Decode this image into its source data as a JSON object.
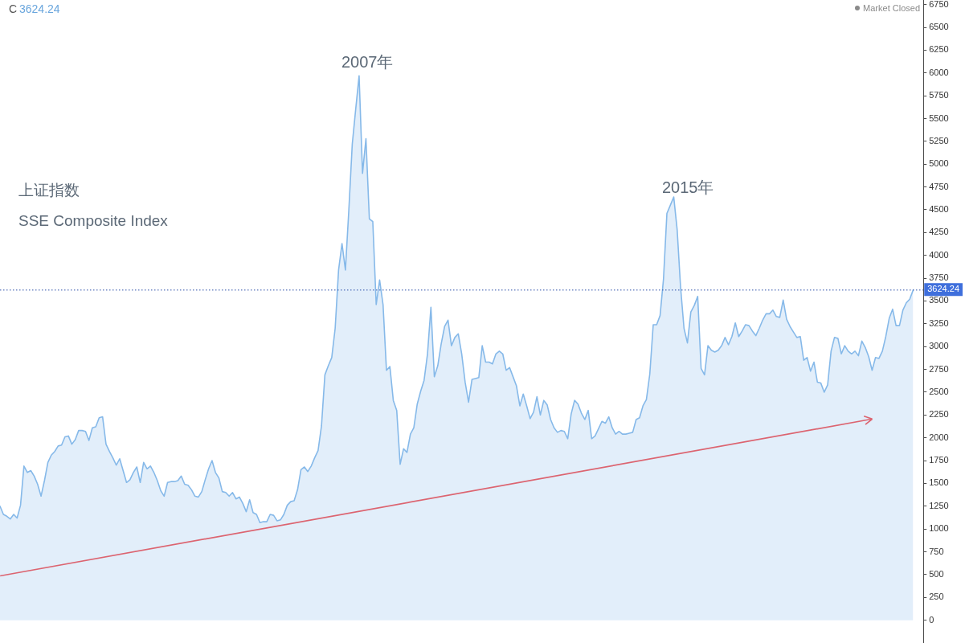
{
  "chart_data": {
    "type": "area",
    "title": "上证指数",
    "subtitle": "SSE Composite Index",
    "annotations": [
      "C",
      "3624.24",
      "Market Closed",
      "2007年",
      "2015年"
    ],
    "categories": [
      null,
      null,
      null,
      null,
      null,
      null,
      null,
      null,
      null,
      null,
      null,
      null,
      null,
      null,
      null,
      null,
      null,
      null,
      null,
      null,
      null,
      null,
      null,
      null,
      null,
      null,
      null,
      null,
      null,
      null,
      null,
      null,
      null,
      null,
      null,
      null,
      null,
      null,
      null,
      null,
      null,
      null,
      null,
      null,
      null,
      null,
      null,
      null,
      null,
      null,
      null,
      null,
      null,
      null,
      null,
      null,
      null,
      null,
      null,
      null,
      null,
      null,
      null,
      null,
      null,
      null,
      null,
      null,
      null,
      null,
      null,
      null,
      null,
      null,
      null,
      null,
      null,
      null,
      null,
      null,
      null,
      null,
      null,
      null,
      null,
      null,
      null,
      null,
      null,
      null,
      null,
      null,
      null,
      null,
      null,
      null,
      null,
      null,
      null,
      null,
      null,
      null,
      null,
      null,
      null,
      null,
      null,
      null,
      null,
      null,
      null,
      null,
      null,
      null,
      null,
      null,
      null,
      null,
      null,
      null,
      null,
      null,
      null,
      null,
      null,
      null,
      null,
      null,
      null,
      null,
      null,
      null,
      null,
      null,
      null,
      null,
      null,
      null,
      null,
      null,
      null,
      null,
      null,
      null,
      null,
      null,
      null,
      null,
      null,
      null,
      null,
      null,
      null,
      null,
      null,
      null,
      null,
      null,
      null,
      null,
      null,
      null,
      null,
      null,
      null,
      null,
      null,
      null,
      null,
      null,
      null,
      null,
      null,
      null,
      null,
      null,
      null,
      null,
      null,
      null,
      null,
      null,
      null,
      null,
      null,
      null,
      null,
      null,
      null,
      null,
      null,
      null,
      null,
      null,
      null,
      null,
      null,
      null,
      null,
      null,
      null,
      null,
      null,
      null,
      null,
      null,
      null,
      null,
      null,
      null,
      null,
      null,
      null,
      null,
      null,
      null,
      null,
      null,
      null,
      null,
      null,
      null,
      null,
      null,
      null,
      null,
      null,
      null,
      null,
      null,
      null,
      null,
      null,
      null,
      null,
      null,
      null,
      null,
      null,
      null,
      null,
      null,
      null,
      null,
      null,
      null,
      null,
      null,
      null,
      null,
      null,
      null,
      null,
      null,
      null,
      null,
      null,
      null,
      null,
      null,
      null,
      null,
      null,
      null,
      null,
      null,
      null,
      null
    ],
    "series": [
      {
        "color": "#86b9e9",
        "values": [
          1250,
          1160,
          1140,
          1110,
          1160,
          1120,
          1260,
          1690,
          1620,
          1640,
          1580,
          1490,
          1360,
          1530,
          1730,
          1810,
          1850,
          1910,
          1920,
          2010,
          2020,
          1930,
          1980,
          2080,
          2080,
          2070,
          1970,
          2110,
          2120,
          2220,
          2230,
          1930,
          1850,
          1780,
          1700,
          1770,
          1640,
          1510,
          1540,
          1620,
          1680,
          1510,
          1730,
          1660,
          1690,
          1620,
          1530,
          1420,
          1360,
          1510,
          1520,
          1520,
          1530,
          1580,
          1490,
          1480,
          1430,
          1360,
          1350,
          1410,
          1540,
          1660,
          1750,
          1620,
          1560,
          1410,
          1400,
          1360,
          1400,
          1330,
          1350,
          1280,
          1190,
          1320,
          1180,
          1160,
          1070,
          1080,
          1080,
          1160,
          1150,
          1090,
          1100,
          1160,
          1260,
          1300,
          1310,
          1430,
          1650,
          1680,
          1630,
          1690,
          1780,
          1860,
          2130,
          2690,
          2790,
          2880,
          3200,
          3840,
          4130,
          3840,
          4500,
          5220,
          5600,
          5970,
          4900,
          5280,
          4400,
          4370,
          3460,
          3730,
          3460,
          2740,
          2780,
          2410,
          2300,
          1710,
          1880,
          1840,
          2040,
          2110,
          2370,
          2510,
          2630,
          2920,
          3430,
          2670,
          2790,
          3030,
          3220,
          3290,
          3010,
          3100,
          3140,
          2920,
          2610,
          2390,
          2640,
          2650,
          2660,
          3010,
          2830,
          2830,
          2810,
          2920,
          2950,
          2920,
          2740,
          2770,
          2670,
          2570,
          2350,
          2480,
          2350,
          2210,
          2280,
          2450,
          2250,
          2410,
          2360,
          2200,
          2110,
          2060,
          2080,
          2070,
          1990,
          2260,
          2410,
          2370,
          2270,
          2200,
          2300,
          1990,
          2020,
          2100,
          2180,
          2160,
          2230,
          2110,
          2040,
          2070,
          2040,
          2040,
          2050,
          2060,
          2200,
          2220,
          2350,
          2420,
          2700,
          3240,
          3240,
          3340,
          3740,
          4460,
          4550,
          4640,
          4280,
          3650,
          3200,
          3040,
          3380,
          3450,
          3550,
          2760,
          2690,
          3010,
          2960,
          2940,
          2960,
          3010,
          3100,
          3020,
          3110,
          3260,
          3110,
          3170,
          3240,
          3230,
          3170,
          3120,
          3200,
          3290,
          3360,
          3360,
          3400,
          3330,
          3320,
          3510,
          3300,
          3220,
          3160,
          3100,
          3110,
          2850,
          2880,
          2730,
          2830,
          2610,
          2600,
          2500,
          2580,
          2950,
          3100,
          3090,
          2920,
          3010,
          2950,
          2920,
          2950,
          2900,
          3060,
          2990,
          2890,
          2740,
          2880,
          2870,
          2950,
          3110,
          3310,
          3410,
          3230,
          3230,
          3400,
          3480,
          3520,
          3620
        ]
      }
    ],
    "ylim": [
      -250,
      6800
    ],
    "yticks": [
      0,
      250,
      500,
      750,
      1000,
      1250,
      1500,
      1750,
      2000,
      2250,
      2500,
      2750,
      3000,
      3250,
      3500,
      3750,
      4000,
      4250,
      4500,
      4750,
      5000,
      5250,
      5500,
      5750,
      6000,
      6250,
      6500,
      6750
    ],
    "ref_lines": [
      {
        "axis": "y",
        "value": 3624.24,
        "label": "3624.24",
        "color": "#2c4fa8",
        "line_style": "dotted"
      }
    ],
    "tick_labels": "y",
    "marker": "none",
    "line_style": "solid"
  }
}
